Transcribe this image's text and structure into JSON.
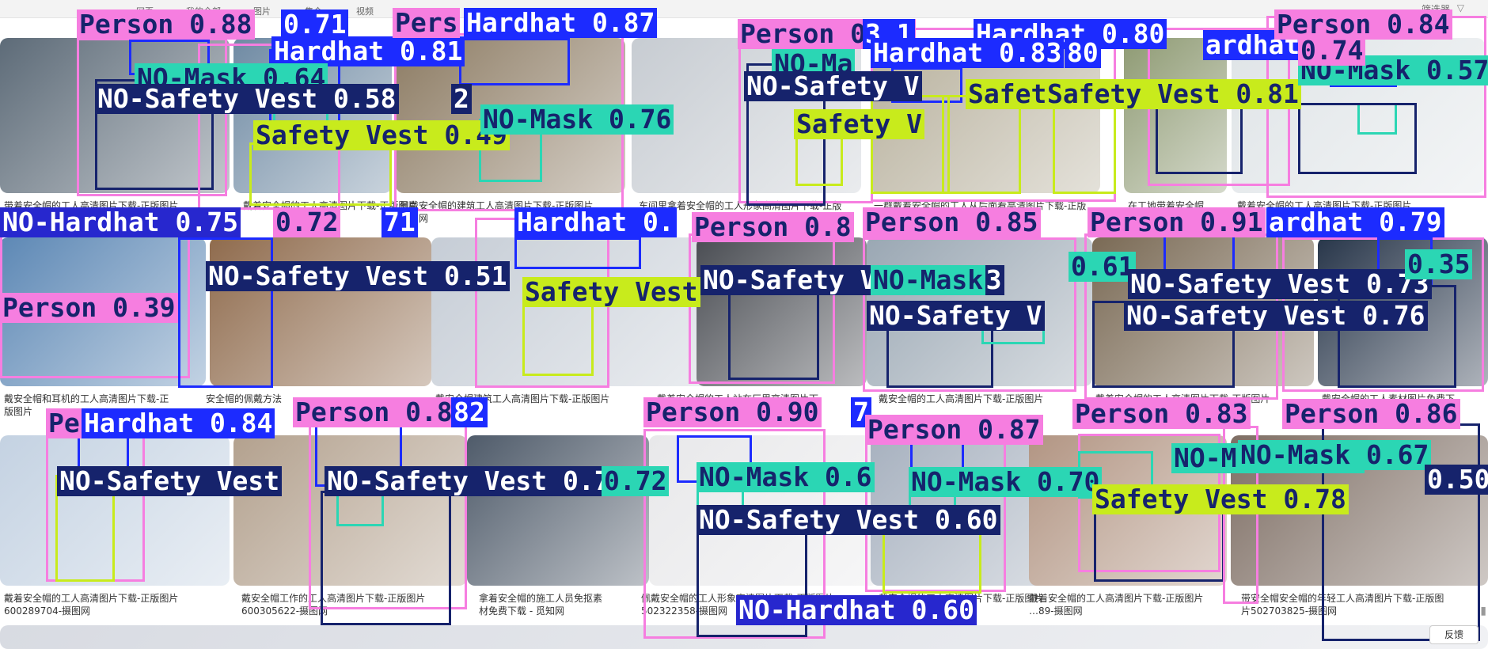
{
  "colors": {
    "person": "#f67ee0",
    "hardhat": "#1c2bff",
    "no_mask": "#2bd6b4",
    "no_safety_vest": "#16236c",
    "safety_vest": "#c8eb1c",
    "no_hardhat": "#2727ce",
    "person_text": "#16236c",
    "hardhat_text": "#ffffff",
    "no_mask_text": "#16236c",
    "no_safety_vest_text": "#ffffff",
    "safety_vest_text": "#16236c",
    "no_hardhat_text": "#ffffff"
  },
  "nav": {
    "items": [
      "网页",
      "我的全部",
      "图片",
      "集合",
      "视频"
    ],
    "filter_label": "筛选器",
    "filter_icon": "filter-icon"
  },
  "tiles": [
    {
      "color": "#5d6b78"
    },
    {
      "color": "#6f8aa3"
    },
    {
      "color": "#8d7c64"
    },
    {
      "color": "#c7ccd2"
    },
    {
      "color": "#b7b09c"
    },
    {
      "color": "#8e9a73"
    },
    {
      "color": "#dfe4e7"
    },
    {
      "color": "#5d88b5"
    },
    {
      "color": "#8f6b4d"
    },
    {
      "color": "#c6cdd6"
    },
    {
      "color": "#4a4d53"
    },
    {
      "color": "#9aa7b3"
    },
    {
      "color": "#7a6a55"
    },
    {
      "color": "#28364a"
    },
    {
      "color": "#c4d2e2"
    },
    {
      "color": "#b3a18e"
    },
    {
      "color": "#4f5b6a"
    },
    {
      "color": "#e8e8ea"
    },
    {
      "color": "#a7b1bf"
    },
    {
      "color": "#b29583"
    },
    {
      "color": "#7e6e64"
    },
    {
      "color": "#d8dbe2"
    }
  ],
  "captions": [
    [
      "带着安全帽的工人高清图片下载-正版图片"
    ],
    [
      "戴着安全帽的工人高清图片下载-正版图片"
    ],
    [
      "佩戴安全帽的建筑工人高清图片下载-正版图片",
      "摄图网"
    ],
    [
      "车间里拿着安全帽的工人形象高清图片下载-正版"
    ],
    [
      "一群戴着安全帽的工人从后面看高清图片下载-正版"
    ],
    [
      "在工地带着安全帽"
    ],
    [
      "戴着安全帽的工人高清图片下载-正版图片"
    ],
    [
      "戴安全帽和耳机的工人高清图片下载-正",
      "版图片"
    ],
    [
      "安全帽的佩戴方法"
    ],
    [
      "戴安全帽建筑工人高清图片下载-正版图片"
    ],
    [
      "戴着安全帽的工人站在厂里高清图片下"
    ],
    [
      "戴安全帽的工人高清图片下载-正版图片"
    ],
    [
      "戴着安全帽的工人高清图片下载-正版图片"
    ],
    [
      "戴安全帽的工人素材图片免费下"
    ],
    [
      "戴着安全帽的工人高清图片下载-正版图片",
      "600289704-摄图网"
    ],
    [
      "戴安全帽工作的工人高清图片下载-正版图片",
      "600305622-摄图网"
    ],
    [
      "拿着安全帽的施工人员免抠素",
      "材免费下载 - 觅知网"
    ],
    [
      "佩戴安全帽的工人形象高清图片下载-正版图片",
      "502322358-摄图网"
    ],
    [
      "戴安全帽的工人高清图片下载-正版图片"
    ],
    [
      "戴着安全帽的工人高清图片下载-正版图片",
      "…89-摄图网"
    ],
    [
      "带安全帽安全帽的年轻工人高清图片下载-正版图",
      "片502703825-摄图网"
    ]
  ],
  "detections": [
    {
      "label": "Person 0.88",
      "cls": "person"
    },
    {
      "label": "0.71",
      "cls": "hardhat"
    },
    {
      "label": "Hardhat 0.81",
      "cls": "hardhat"
    },
    {
      "label": "NO-Mask 0.64",
      "cls": "no_mask"
    },
    {
      "label": "NO-Safety Vest 0.58",
      "cls": "no_safety_vest"
    },
    {
      "label": "2",
      "cls": "no_safety_vest"
    },
    {
      "label": "Safety Vest 0.49",
      "cls": "safety_vest"
    },
    {
      "label": "Pers",
      "cls": "person"
    },
    {
      "label": "Hardhat 0.87",
      "cls": "hardhat"
    },
    {
      "label": "NO-Mask 0.76",
      "cls": "no_mask"
    },
    {
      "label": "Person 0.54",
      "cls": "person"
    },
    {
      "label": "3.1",
      "cls": "hardhat"
    },
    {
      "label": "Hardhat 0.80",
      "cls": "hardhat"
    },
    {
      "label": "NO-Ma",
      "cls": "no_mask"
    },
    {
      "label": "Hardhat 0.83",
      "cls": "hardhat"
    },
    {
      "label": "80",
      "cls": "hardhat"
    },
    {
      "label": "ardhat 0.7",
      "cls": "hardhat"
    },
    {
      "label": "NO-Safety V",
      "cls": "no_safety_vest"
    },
    {
      "label": "Safety V",
      "cls": "safety_vest"
    },
    {
      "label": "Safet",
      "cls": "safety_vest"
    },
    {
      "label": "Safety Vest 0.81",
      "cls": "safety_vest"
    },
    {
      "label": "Person 0.84",
      "cls": "person"
    },
    {
      "label": "NO-Mask 0.57",
      "cls": "no_mask"
    },
    {
      "label": "0.74",
      "cls": "person"
    },
    {
      "label": "NO-Hardhat 0.75",
      "cls": "no_hardhat"
    },
    {
      "label": "0.72",
      "cls": "person"
    },
    {
      "label": "71",
      "cls": "hardhat"
    },
    {
      "label": "Hardhat 0.",
      "cls": "hardhat"
    },
    {
      "label": "Person 0.8",
      "cls": "person"
    },
    {
      "label": "Person 0.85",
      "cls": "person"
    },
    {
      "label": "Person 0.91",
      "cls": "person"
    },
    {
      "label": "ardhat 0.79",
      "cls": "hardhat"
    },
    {
      "label": "NO-Safety Vest 0.51",
      "cls": "no_safety_vest"
    },
    {
      "label": "Person 0.39",
      "cls": "person"
    },
    {
      "label": "Safety Vest",
      "cls": "safety_vest"
    },
    {
      "label": "NO-Safety Vest 0.73",
      "cls": "no_safety_vest"
    },
    {
      "label": "NO-Mask",
      "cls": "no_mask"
    },
    {
      "label": "0.61",
      "cls": "no_mask"
    },
    {
      "label": "NO-Safety Vest 0.73",
      "cls": "no_safety_vest"
    },
    {
      "label": "NO-Safety Vest 0.76",
      "cls": "no_safety_vest"
    },
    {
      "label": "NO-Safety V",
      "cls": "no_safety_vest"
    },
    {
      "label": "0.35",
      "cls": "no_mask"
    },
    {
      "label": "Pe",
      "cls": "person"
    },
    {
      "label": "Hardhat 0.84",
      "cls": "hardhat"
    },
    {
      "label": "Person 0.89",
      "cls": "person"
    },
    {
      "label": "82",
      "cls": "hardhat"
    },
    {
      "label": "NO-Safety Vest",
      "cls": "no_safety_vest"
    },
    {
      "label": "NO-Safety Vest 0.77",
      "cls": "no_safety_vest"
    },
    {
      "label": "0.72",
      "cls": "no_mask"
    },
    {
      "label": "Person 0.90",
      "cls": "person"
    },
    {
      "label": "7",
      "cls": "hardhat"
    },
    {
      "label": "Person 0.87",
      "cls": "person"
    },
    {
      "label": "Person 0.83",
      "cls": "person"
    },
    {
      "label": "Person 0.86",
      "cls": "person"
    },
    {
      "label": "NO-Mask 0.6",
      "cls": "no_mask"
    },
    {
      "label": "NO-Mask 0.70",
      "cls": "no_mask"
    },
    {
      "label": "NO-Mask 0.62",
      "cls": "no_mask"
    },
    {
      "label": "NO-Mask 0.67",
      "cls": "no_mask"
    },
    {
      "label": "Safety Vest 0.78",
      "cls": "safety_vest"
    },
    {
      "label": "NO-Safety Vest 0.60",
      "cls": "no_safety_vest"
    },
    {
      "label": "NO-Hardhat 0.60",
      "cls": "no_hardhat"
    },
    {
      "label": "0.50",
      "cls": "no_safety_vest"
    }
  ],
  "boxes": [
    {
      "cls": "person"
    },
    {
      "cls": "hardhat"
    },
    {
      "cls": "no_mask"
    },
    {
      "cls": "no_safety_vest"
    },
    {
      "cls": "person"
    },
    {
      "cls": "hardhat"
    },
    {
      "cls": "no_mask"
    },
    {
      "cls": "safety_vest"
    },
    {
      "cls": "person"
    },
    {
      "cls": "hardhat"
    },
    {
      "cls": "no_mask"
    },
    {
      "cls": "person"
    },
    {
      "cls": "no_safety_vest"
    },
    {
      "cls": "safety_vest"
    },
    {
      "cls": "person"
    },
    {
      "cls": "hardhat"
    },
    {
      "cls": "safety_vest"
    },
    {
      "cls": "safety_vest"
    },
    {
      "cls": "safety_vest"
    },
    {
      "cls": "person"
    },
    {
      "cls": "no_safety_vest"
    },
    {
      "cls": "person"
    },
    {
      "cls": "hardhat"
    },
    {
      "cls": "no_mask"
    },
    {
      "cls": "no_safety_vest"
    },
    {
      "cls": "person"
    },
    {
      "cls": "hardhat"
    },
    {
      "cls": "person"
    },
    {
      "cls": "hardhat"
    },
    {
      "cls": "safety_vest"
    },
    {
      "cls": "person"
    },
    {
      "cls": "no_safety_vest"
    },
    {
      "cls": "person"
    },
    {
      "cls": "no_safety_vest"
    },
    {
      "cls": "no_mask"
    },
    {
      "cls": "person"
    },
    {
      "cls": "no_safety_vest"
    },
    {
      "cls": "hardhat"
    },
    {
      "cls": "person"
    },
    {
      "cls": "no_safety_vest"
    },
    {
      "cls": "hardhat"
    },
    {
      "cls": "person"
    },
    {
      "cls": "hardhat"
    },
    {
      "cls": "safety_vest"
    },
    {
      "cls": "person"
    },
    {
      "cls": "hardhat"
    },
    {
      "cls": "no_mask"
    },
    {
      "cls": "no_safety_vest"
    },
    {
      "cls": "person"
    },
    {
      "cls": "hardhat"
    },
    {
      "cls": "no_mask"
    },
    {
      "cls": "no_safety_vest"
    },
    {
      "cls": "person"
    },
    {
      "cls": "hardhat"
    },
    {
      "cls": "no_mask"
    },
    {
      "cls": "safety_vest"
    },
    {
      "cls": "person"
    },
    {
      "cls": "no_mask"
    },
    {
      "cls": "no_safety_vest"
    },
    {
      "cls": "person"
    },
    {
      "cls": "no_safety_vest"
    }
  ],
  "footer": {
    "feedback_label": "反馈"
  }
}
